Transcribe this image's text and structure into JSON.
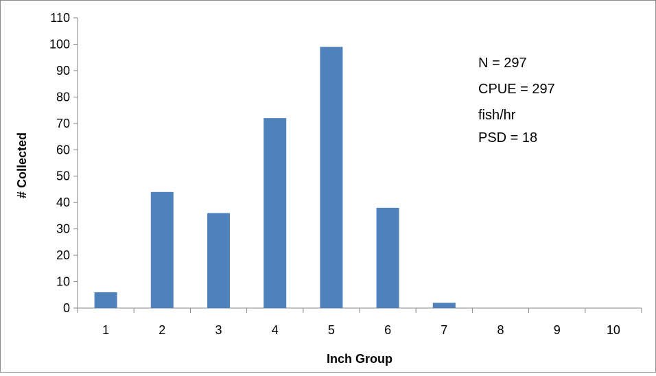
{
  "chart_data": {
    "type": "bar",
    "title": "",
    "xlabel": "Inch Group",
    "ylabel": "# Collected",
    "categories": [
      "1",
      "2",
      "3",
      "4",
      "5",
      "6",
      "7",
      "8",
      "9",
      "10"
    ],
    "values": [
      6,
      44,
      36,
      72,
      99,
      38,
      2,
      0,
      0,
      0
    ],
    "ylim": [
      0,
      110
    ],
    "yticks": [
      "0",
      "10",
      "20",
      "30",
      "40",
      "50",
      "60",
      "70",
      "80",
      "90",
      "100",
      "110"
    ],
    "grid": false,
    "legend": "none",
    "bar_color": "#4f81bd",
    "annotations": [
      "N = 297",
      "CPUE = 297",
      "fish/hr",
      "PSD = 18"
    ]
  }
}
